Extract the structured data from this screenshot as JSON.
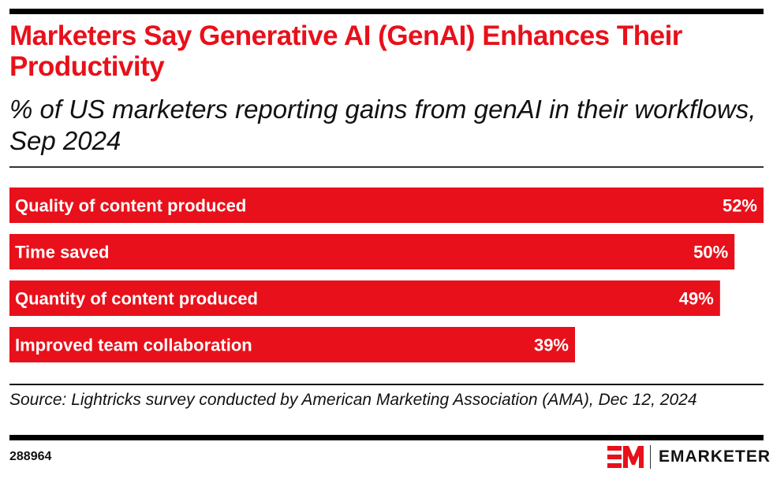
{
  "header": {
    "title": "Marketers Say Generative AI (GenAI) Enhances Their Productivity",
    "subtitle": "% of US marketers reporting gains from genAI in their workflows, Sep 2024"
  },
  "colors": {
    "bar": "#e8101a",
    "title": "#e8101a",
    "label_inside": "#ffffff",
    "label_outside": "#111111"
  },
  "chart_data": {
    "type": "bar",
    "orientation": "horizontal",
    "title": "Marketers Say Generative AI (GenAI) Enhances Their Productivity",
    "subtitle": "% of US marketers reporting gains from genAI in their workflows, Sep 2024",
    "categories": [
      "Quality of content produced",
      "Time saved",
      "Quantity of content produced",
      "Improved team collaboration"
    ],
    "values": [
      52,
      50,
      49,
      39
    ],
    "value_labels": [
      "52%",
      "50%",
      "49%",
      "39%"
    ],
    "xlabel": "",
    "ylabel": "",
    "xlim": [
      0,
      52
    ],
    "grid": false,
    "legend": "none"
  },
  "footer": {
    "source": "Source: Lightricks survey conducted by American Marketing Association (AMA), Dec 12, 2024",
    "chart_id": "288964",
    "brand": "EMARKETER"
  }
}
